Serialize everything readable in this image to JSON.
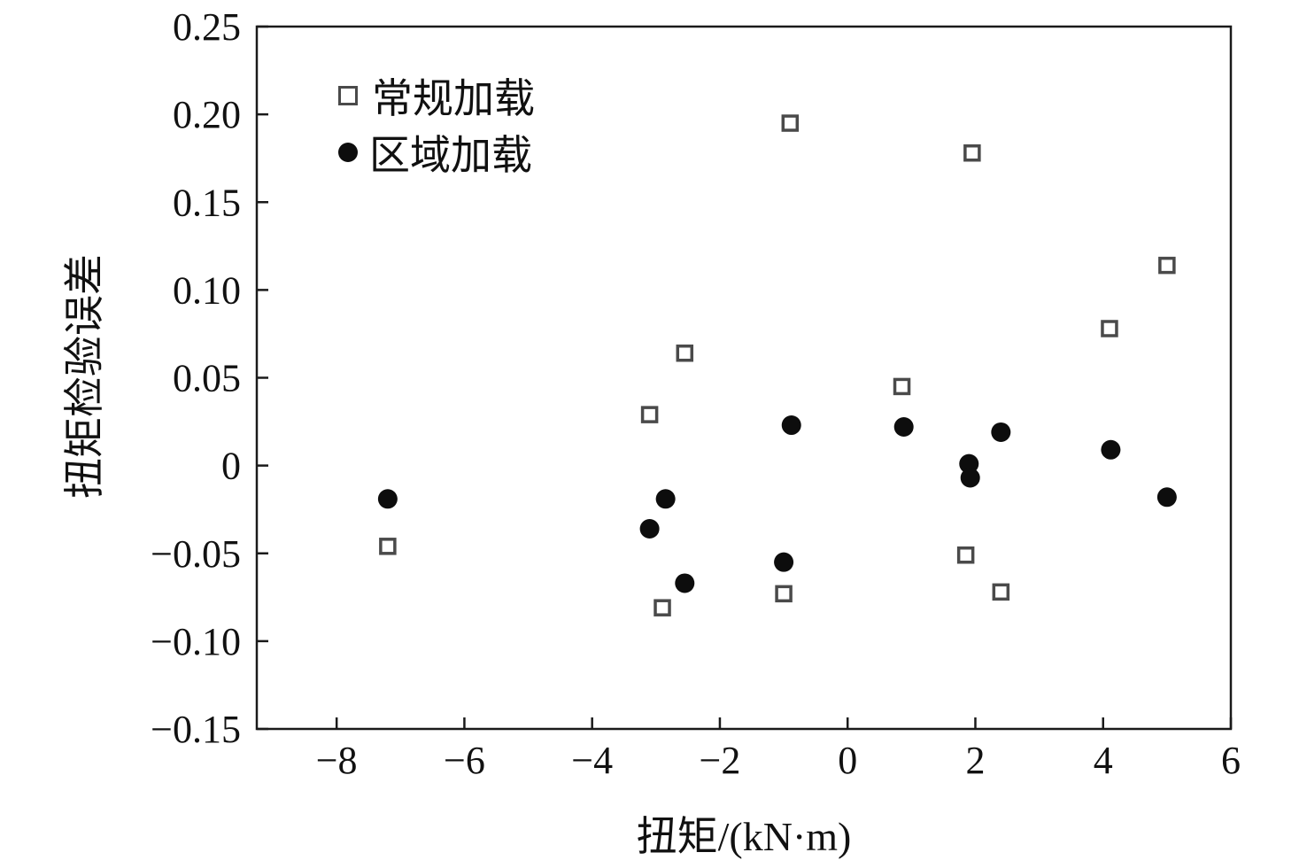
{
  "chart_data": {
    "type": "scatter",
    "title": "",
    "xlabel": "扭矩/(kN·m)",
    "ylabel": "扭矩检验误差",
    "xlim": [
      -9.25,
      6
    ],
    "ylim": [
      -0.15,
      0.25
    ],
    "xticks": [
      -8,
      -6,
      -4,
      -2,
      0,
      2,
      4,
      6
    ],
    "xtick_labels": [
      "−8",
      "−6",
      "−4",
      "−2",
      "0",
      "2",
      "4",
      "6"
    ],
    "yticks": [
      0.25,
      0.2,
      0.15,
      0.1,
      0.05,
      0,
      -0.05,
      -0.1,
      -0.15
    ],
    "ytick_labels": [
      "0.25",
      "0.20",
      "0.15",
      "0.10",
      "0.05",
      "0",
      "−0.05",
      "−0.10",
      "−0.15"
    ],
    "grid": false,
    "legend_position": "upper-left-inside",
    "frame_color": "#1a1a1a",
    "series": [
      {
        "name": "常规加载",
        "marker": "open-square",
        "color": "#4a4a4a",
        "points": [
          [
            -7.2,
            -0.046
          ],
          [
            -3.1,
            0.029
          ],
          [
            -2.9,
            -0.081
          ],
          [
            -2.55,
            0.064
          ],
          [
            -1.0,
            -0.073
          ],
          [
            -0.9,
            0.195
          ],
          [
            0.85,
            0.045
          ],
          [
            1.85,
            -0.051
          ],
          [
            1.95,
            0.178
          ],
          [
            2.4,
            -0.072
          ],
          [
            4.1,
            0.078
          ],
          [
            5.0,
            0.114
          ]
        ]
      },
      {
        "name": "区域加载",
        "marker": "filled-circle",
        "color": "#0d0d0d",
        "points": [
          [
            -7.2,
            -0.019
          ],
          [
            -3.1,
            -0.036
          ],
          [
            -2.85,
            -0.019
          ],
          [
            -2.55,
            -0.067
          ],
          [
            -1.0,
            -0.055
          ],
          [
            -0.88,
            0.023
          ],
          [
            0.88,
            0.022
          ],
          [
            1.9,
            0.001
          ],
          [
            1.92,
            -0.007
          ],
          [
            2.4,
            0.019
          ],
          [
            4.12,
            0.009
          ],
          [
            5.0,
            -0.018
          ]
        ]
      }
    ]
  }
}
